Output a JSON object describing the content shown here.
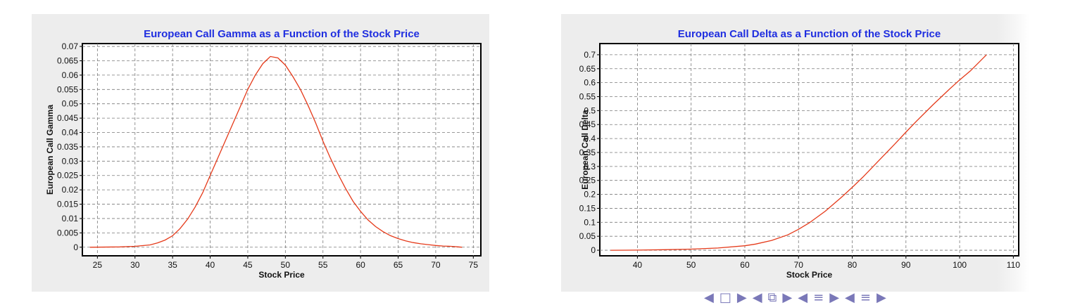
{
  "chart_data": [
    {
      "type": "line",
      "title": "European Call Gamma as a Function of the Stock Price",
      "xlabel": "Stock Price",
      "ylabel": "European Call Gamma",
      "xlim": [
        23,
        76
      ],
      "ylim": [
        -0.003,
        0.071
      ],
      "xticks": [
        25,
        30,
        35,
        40,
        45,
        50,
        55,
        60,
        65,
        70,
        75
      ],
      "yticks": [
        0,
        0.005,
        0.01,
        0.015,
        0.02,
        0.025,
        0.03,
        0.035,
        0.04,
        0.045,
        0.05,
        0.055,
        0.06,
        0.065,
        0.07
      ],
      "ytick_labels": [
        "0",
        "0.005",
        "0.01",
        "0.015",
        "0.02",
        "0.025",
        "0.03",
        "0.035",
        "0.04",
        "0.045",
        "0.05",
        "0.055",
        "0.06",
        "0.065",
        "0.07"
      ],
      "grid": true,
      "series": [
        {
          "color": "#e53a1a",
          "x": [
            24,
            28,
            30,
            32,
            33,
            34,
            35,
            36,
            37,
            38,
            39,
            40,
            41,
            42,
            43,
            44,
            45,
            46,
            47,
            48,
            49,
            50,
            51,
            52,
            53,
            54,
            55,
            56,
            57,
            58,
            59,
            60,
            61,
            62,
            63,
            64,
            65,
            66,
            67,
            68,
            69,
            70,
            71,
            72,
            73,
            73.5
          ],
          "y": [
            0,
            0.0001,
            0.0003,
            0.0008,
            0.0015,
            0.0025,
            0.004,
            0.0065,
            0.0098,
            0.014,
            0.019,
            0.025,
            0.031,
            0.037,
            0.043,
            0.049,
            0.055,
            0.06,
            0.064,
            0.0665,
            0.066,
            0.0635,
            0.0595,
            0.055,
            0.0495,
            0.0435,
            0.037,
            0.031,
            0.0255,
            0.0205,
            0.016,
            0.0125,
            0.0095,
            0.0072,
            0.0054,
            0.004,
            0.003,
            0.0022,
            0.0016,
            0.0012,
            0.0009,
            0.0006,
            0.0004,
            0.0003,
            0.0001,
            0.0
          ]
        }
      ]
    },
    {
      "type": "line",
      "title": "European Call Delta as a Function of the Stock Price",
      "xlabel": "Stock Price",
      "ylabel": "European Call Delta",
      "xlim": [
        33,
        111
      ],
      "ylim": [
        -0.02,
        0.74
      ],
      "xticks": [
        40,
        50,
        60,
        70,
        80,
        90,
        100,
        110
      ],
      "yticks": [
        0,
        0.05,
        0.1,
        0.15,
        0.2,
        0.25,
        0.3,
        0.35,
        0.4,
        0.45,
        0.5,
        0.55,
        0.6,
        0.65,
        0.7
      ],
      "ytick_labels": [
        "0",
        "0.05",
        "0.1",
        "0.15",
        "0.2",
        "0.25",
        "0.3",
        "0.35",
        "0.4",
        "0.45",
        "0.5",
        "0.55",
        "0.6",
        "0.65",
        "0.7"
      ],
      "grid": true,
      "series": [
        {
          "color": "#e53a1a",
          "x": [
            35,
            40,
            45,
            50,
            55,
            60,
            62,
            65,
            68,
            70,
            72,
            75,
            78,
            80,
            82,
            85,
            88,
            90,
            92,
            95,
            98,
            100,
            102,
            105
          ],
          "y": [
            0,
            0.0005,
            0.002,
            0.004,
            0.008,
            0.016,
            0.022,
            0.035,
            0.055,
            0.075,
            0.098,
            0.14,
            0.19,
            0.225,
            0.262,
            0.322,
            0.382,
            0.423,
            0.463,
            0.52,
            0.575,
            0.61,
            0.642,
            0.7
          ]
        }
      ]
    }
  ],
  "nav": {
    "glyphs": [
      "◀",
      "□",
      "▶",
      "◀",
      "⧉",
      "▶",
      "◀",
      "≡",
      "▶",
      "◀",
      "≡",
      "▶"
    ]
  }
}
